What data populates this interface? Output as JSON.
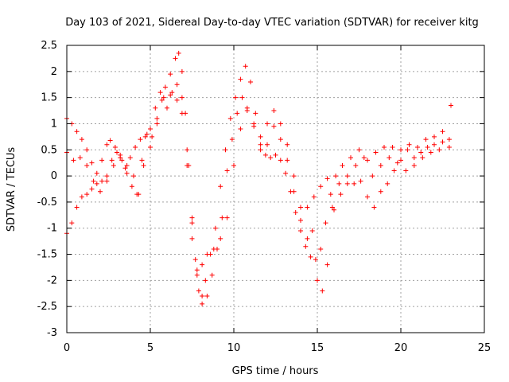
{
  "chart_data": {
    "type": "scatter",
    "title": "Day 103 of 2021, Sidereal Day-to-day VTEC variation (SDTVAR) for receiver kitg",
    "xlabel": "GPS time / hours",
    "ylabel": "SDTVAR / TECUs",
    "xlim": [
      0,
      25
    ],
    "ylim": [
      -3,
      2.5
    ],
    "x_ticks": [
      "0",
      "5",
      "10",
      "15",
      "20",
      "25"
    ],
    "y_ticks": [
      "-3",
      "-2.5",
      "-2",
      "-1.5",
      "-1",
      "-0.5",
      "0",
      "0.5",
      "1",
      "1.5",
      "2",
      "2.5"
    ],
    "grid": true,
    "marker": "plus",
    "color": "#ff0000",
    "series": [
      {
        "points": [
          [
            0,
            1.1
          ],
          [
            0.3,
            1.0
          ],
          [
            0.6,
            0.85
          ],
          [
            0.9,
            0.7
          ],
          [
            1.2,
            0.5
          ],
          [
            1.5,
            0.25
          ],
          [
            1.8,
            0.05
          ],
          [
            2.1,
            0.3
          ],
          [
            2.4,
            0.6
          ],
          [
            2.6,
            0.68
          ],
          [
            2.9,
            0.55
          ],
          [
            3.2,
            0.35
          ],
          [
            3.5,
            0.15
          ],
          [
            3.8,
            0.35
          ],
          [
            4.1,
            0.55
          ],
          [
            4.4,
            0.7
          ],
          [
            4.7,
            0.75
          ],
          [
            5.0,
            0.9
          ],
          [
            5.3,
            1.3
          ],
          [
            5.6,
            1.6
          ],
          [
            5.9,
            1.7
          ],
          [
            6.2,
            1.95
          ],
          [
            6.5,
            2.25
          ],
          [
            6.7,
            2.35
          ],
          [
            6.9,
            2.0
          ],
          [
            7.1,
            1.2
          ],
          [
            7.3,
            0.2
          ],
          [
            7.5,
            -0.8
          ],
          [
            7.7,
            -1.6
          ],
          [
            7.9,
            -2.2
          ],
          [
            8.1,
            -2.3
          ],
          [
            8.3,
            -2.0
          ],
          [
            8.6,
            -1.5
          ],
          [
            8.9,
            -1.0
          ],
          [
            9.2,
            -0.2
          ],
          [
            9.5,
            0.5
          ],
          [
            9.8,
            1.1
          ],
          [
            10.1,
            1.5
          ],
          [
            10.4,
            1.85
          ],
          [
            10.7,
            2.1
          ],
          [
            11.0,
            1.8
          ],
          [
            11.3,
            1.2
          ],
          [
            11.6,
            0.6
          ],
          [
            11.9,
            0.4
          ],
          [
            12.2,
            0.35
          ],
          [
            12.5,
            0.4
          ],
          [
            12.8,
            0.3
          ],
          [
            13.1,
            0.05
          ],
          [
            13.4,
            -0.3
          ],
          [
            13.7,
            -0.7
          ],
          [
            14.0,
            -1.05
          ],
          [
            14.3,
            -1.35
          ],
          [
            14.6,
            -1.55
          ],
          [
            14.9,
            -1.6
          ],
          [
            15.2,
            -1.4
          ],
          [
            15.5,
            -0.9
          ],
          [
            15.8,
            -0.35
          ],
          [
            16.1,
            0.0
          ],
          [
            16.5,
            0.2
          ],
          [
            17.0,
            0.35
          ],
          [
            17.5,
            0.5
          ],
          [
            18.0,
            0.3
          ],
          [
            18.5,
            0.45
          ],
          [
            19.0,
            0.55
          ],
          [
            19.5,
            0.55
          ],
          [
            20.0,
            0.5
          ],
          [
            20.5,
            0.6
          ],
          [
            21.0,
            0.55
          ],
          [
            21.5,
            0.7
          ],
          [
            22.0,
            0.75
          ],
          [
            22.5,
            0.85
          ],
          [
            23.0,
            1.35
          ]
        ]
      },
      {
        "points": [
          [
            0,
            0.45
          ],
          [
            0.4,
            0.3
          ],
          [
            0.8,
            0.35
          ],
          [
            1.2,
            0.2
          ],
          [
            1.6,
            -0.1
          ],
          [
            2.0,
            -0.3
          ],
          [
            2.4,
            -0.1
          ],
          [
            2.8,
            0.2
          ],
          [
            3.2,
            0.4
          ],
          [
            3.6,
            0.2
          ],
          [
            4.0,
            0.0
          ],
          [
            4.3,
            -0.35
          ],
          [
            4.6,
            0.2
          ],
          [
            5.0,
            0.55
          ],
          [
            5.4,
            1.0
          ],
          [
            5.8,
            1.5
          ],
          [
            6.2,
            1.55
          ],
          [
            6.6,
            1.75
          ],
          [
            6.9,
            1.5
          ],
          [
            7.2,
            0.5
          ],
          [
            7.5,
            -0.9
          ],
          [
            7.8,
            -1.9
          ],
          [
            8.1,
            -2.45
          ],
          [
            8.4,
            -2.3
          ],
          [
            8.7,
            -1.9
          ],
          [
            9.0,
            -1.4
          ],
          [
            9.3,
            -0.8
          ],
          [
            9.6,
            0.1
          ],
          [
            9.9,
            0.7
          ],
          [
            10.2,
            1.2
          ],
          [
            10.5,
            1.5
          ],
          [
            10.8,
            1.25
          ],
          [
            11.2,
            0.95
          ],
          [
            11.6,
            0.75
          ],
          [
            12.0,
            1.0
          ],
          [
            12.4,
            1.25
          ],
          [
            12.8,
            1.0
          ],
          [
            13.2,
            0.6
          ],
          [
            13.6,
            0.0
          ],
          [
            14.0,
            -0.6
          ],
          [
            14.4,
            -1.2
          ],
          [
            14.7,
            -1.05
          ],
          [
            15.0,
            -2.0
          ],
          [
            15.3,
            -2.2
          ],
          [
            15.6,
            -1.7
          ],
          [
            15.9,
            -0.6
          ],
          [
            16.3,
            -0.15
          ],
          [
            16.8,
            0.0
          ],
          [
            17.3,
            0.2
          ],
          [
            17.8,
            0.35
          ],
          [
            18.3,
            0.0
          ],
          [
            18.8,
            0.2
          ],
          [
            19.3,
            0.35
          ],
          [
            19.8,
            0.25
          ],
          [
            20.3,
            0.1
          ],
          [
            20.8,
            0.2
          ],
          [
            21.3,
            0.35
          ],
          [
            21.8,
            0.45
          ],
          [
            22.3,
            0.5
          ],
          [
            22.9,
            0.55
          ]
        ]
      },
      {
        "points": [
          [
            0,
            -1.1
          ],
          [
            0.3,
            -0.9
          ],
          [
            0.6,
            -0.6
          ],
          [
            0.9,
            -0.4
          ],
          [
            1.2,
            -0.35
          ],
          [
            1.5,
            -0.25
          ],
          [
            1.8,
            -0.15
          ],
          [
            2.1,
            -0.1
          ],
          [
            2.4,
            0.0
          ],
          [
            2.7,
            0.3
          ],
          [
            3.0,
            0.45
          ],
          [
            3.3,
            0.3
          ],
          [
            3.6,
            0.05
          ],
          [
            3.9,
            -0.2
          ],
          [
            4.2,
            -0.35
          ],
          [
            4.5,
            0.3
          ],
          [
            4.8,
            0.8
          ],
          [
            5.1,
            0.75
          ],
          [
            5.4,
            1.1
          ],
          [
            5.7,
            1.45
          ],
          [
            6.0,
            1.3
          ],
          [
            6.3,
            1.6
          ],
          [
            6.6,
            1.45
          ],
          [
            6.9,
            1.2
          ],
          [
            7.2,
            0.2
          ],
          [
            7.5,
            -1.2
          ],
          [
            7.8,
            -1.8
          ],
          [
            8.1,
            -1.7
          ],
          [
            8.4,
            -1.5
          ],
          [
            8.8,
            -1.4
          ],
          [
            9.2,
            -1.2
          ],
          [
            9.6,
            -0.8
          ],
          [
            10.0,
            0.2
          ],
          [
            10.4,
            0.9
          ],
          [
            10.8,
            1.3
          ],
          [
            11.2,
            1.0
          ],
          [
            11.6,
            0.5
          ],
          [
            12.0,
            0.6
          ],
          [
            12.4,
            0.95
          ],
          [
            12.8,
            0.7
          ],
          [
            13.2,
            0.3
          ],
          [
            13.6,
            -0.3
          ],
          [
            14.0,
            -0.85
          ],
          [
            14.4,
            -0.6
          ],
          [
            14.8,
            -0.4
          ],
          [
            15.2,
            -0.2
          ],
          [
            15.6,
            -0.05
          ],
          [
            16.0,
            -0.65
          ],
          [
            16.4,
            -0.35
          ],
          [
            16.8,
            -0.15
          ],
          [
            17.2,
            -0.15
          ],
          [
            17.6,
            -0.1
          ],
          [
            18.0,
            -0.4
          ],
          [
            18.4,
            -0.6
          ],
          [
            18.8,
            -0.3
          ],
          [
            19.2,
            -0.15
          ],
          [
            19.6,
            0.1
          ],
          [
            20.0,
            0.3
          ],
          [
            20.4,
            0.5
          ],
          [
            20.8,
            0.35
          ],
          [
            21.2,
            0.45
          ],
          [
            21.6,
            0.55
          ],
          [
            22.0,
            0.6
          ],
          [
            22.5,
            0.65
          ],
          [
            22.9,
            0.7
          ]
        ]
      }
    ]
  }
}
